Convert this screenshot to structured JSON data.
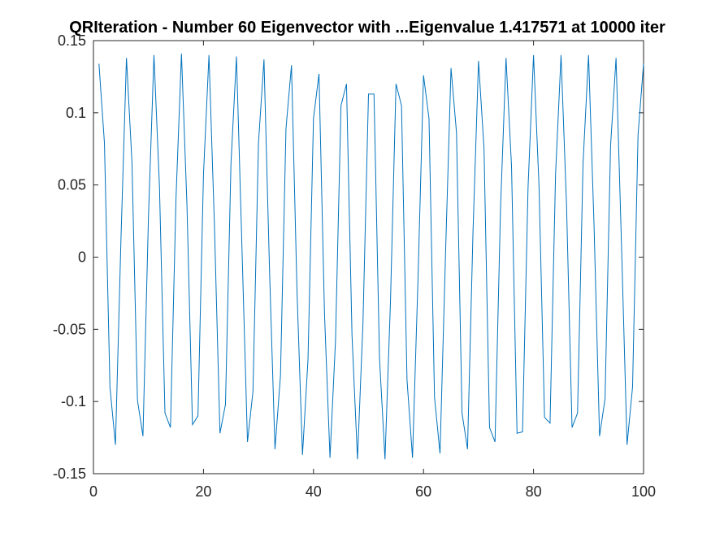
{
  "chart_data": {
    "type": "line",
    "title": "QRIteration - Number 60 Eigenvector with ...Eigenvalue 1.417571 at 10000 iter",
    "xlabel": "",
    "ylabel": "",
    "xlim": [
      0,
      100
    ],
    "ylim": [
      -0.15,
      0.15
    ],
    "grid": false,
    "x_ticks": [
      0,
      20,
      40,
      60,
      80,
      100
    ],
    "x_tick_labels": [
      "0",
      "20",
      "40",
      "60",
      "80",
      "100"
    ],
    "y_ticks": [
      0.15,
      0.1,
      0.05,
      0,
      -0.05,
      -0.1,
      -0.15
    ],
    "y_tick_labels": [
      "0.15",
      "0.1",
      "0.05",
      "0",
      "-0.05",
      "-0.1",
      "-0.15"
    ],
    "series": [
      {
        "color": "#0072BD",
        "x": [
          1,
          2,
          3,
          4,
          5,
          6,
          7,
          8,
          9,
          10,
          11,
          12,
          13,
          14,
          15,
          16,
          17,
          18,
          19,
          20,
          21,
          22,
          23,
          24,
          25,
          26,
          27,
          28,
          29,
          30,
          31,
          32,
          33,
          34,
          35,
          36,
          37,
          38,
          39,
          40,
          41,
          42,
          43,
          44,
          45,
          46,
          47,
          48,
          49,
          50,
          51,
          52,
          53,
          54,
          55,
          56,
          57,
          58,
          59,
          60,
          61,
          62,
          63,
          64,
          65,
          66,
          67,
          68,
          69,
          70,
          71,
          72,
          73,
          74,
          75,
          76,
          77,
          78,
          79,
          80,
          81,
          82,
          83,
          84,
          85,
          86,
          87,
          88,
          89,
          90,
          91,
          92,
          93,
          94,
          95,
          96,
          97,
          98,
          99,
          100
        ],
        "values": [
          0.134,
          0.079,
          -0.09,
          -0.13,
          0.012,
          0.138,
          0.066,
          -0.099,
          -0.124,
          0.028,
          0.14,
          0.049,
          -0.108,
          -0.118,
          0.04,
          0.141,
          0.036,
          -0.116,
          -0.11,
          0.057,
          0.14,
          0.021,
          -0.122,
          -0.102,
          0.065,
          0.139,
          0.006,
          -0.128,
          -0.093,
          0.079,
          0.137,
          -0.008,
          -0.133,
          -0.082,
          0.089,
          0.133,
          -0.023,
          -0.137,
          -0.071,
          0.096,
          0.127,
          -0.039,
          -0.139,
          -0.058,
          0.105,
          0.12,
          -0.054,
          -0.14,
          -0.045,
          0.113,
          0.113,
          -0.07,
          -0.14,
          -0.03,
          0.12,
          0.105,
          -0.085,
          -0.139,
          -0.015,
          0.126,
          0.096,
          -0.097,
          -0.136,
          0.002,
          0.131,
          0.086,
          -0.108,
          -0.133,
          0.018,
          0.136,
          0.075,
          -0.118,
          -0.128,
          0.034,
          0.138,
          0.063,
          -0.122,
          -0.121,
          0.048,
          0.14,
          0.049,
          -0.111,
          -0.115,
          0.057,
          0.14,
          0.036,
          -0.118,
          -0.108,
          0.065,
          0.14,
          0.022,
          -0.124,
          -0.098,
          0.077,
          0.138,
          0.007,
          -0.13,
          -0.09,
          0.085,
          0.134
        ]
      }
    ]
  }
}
